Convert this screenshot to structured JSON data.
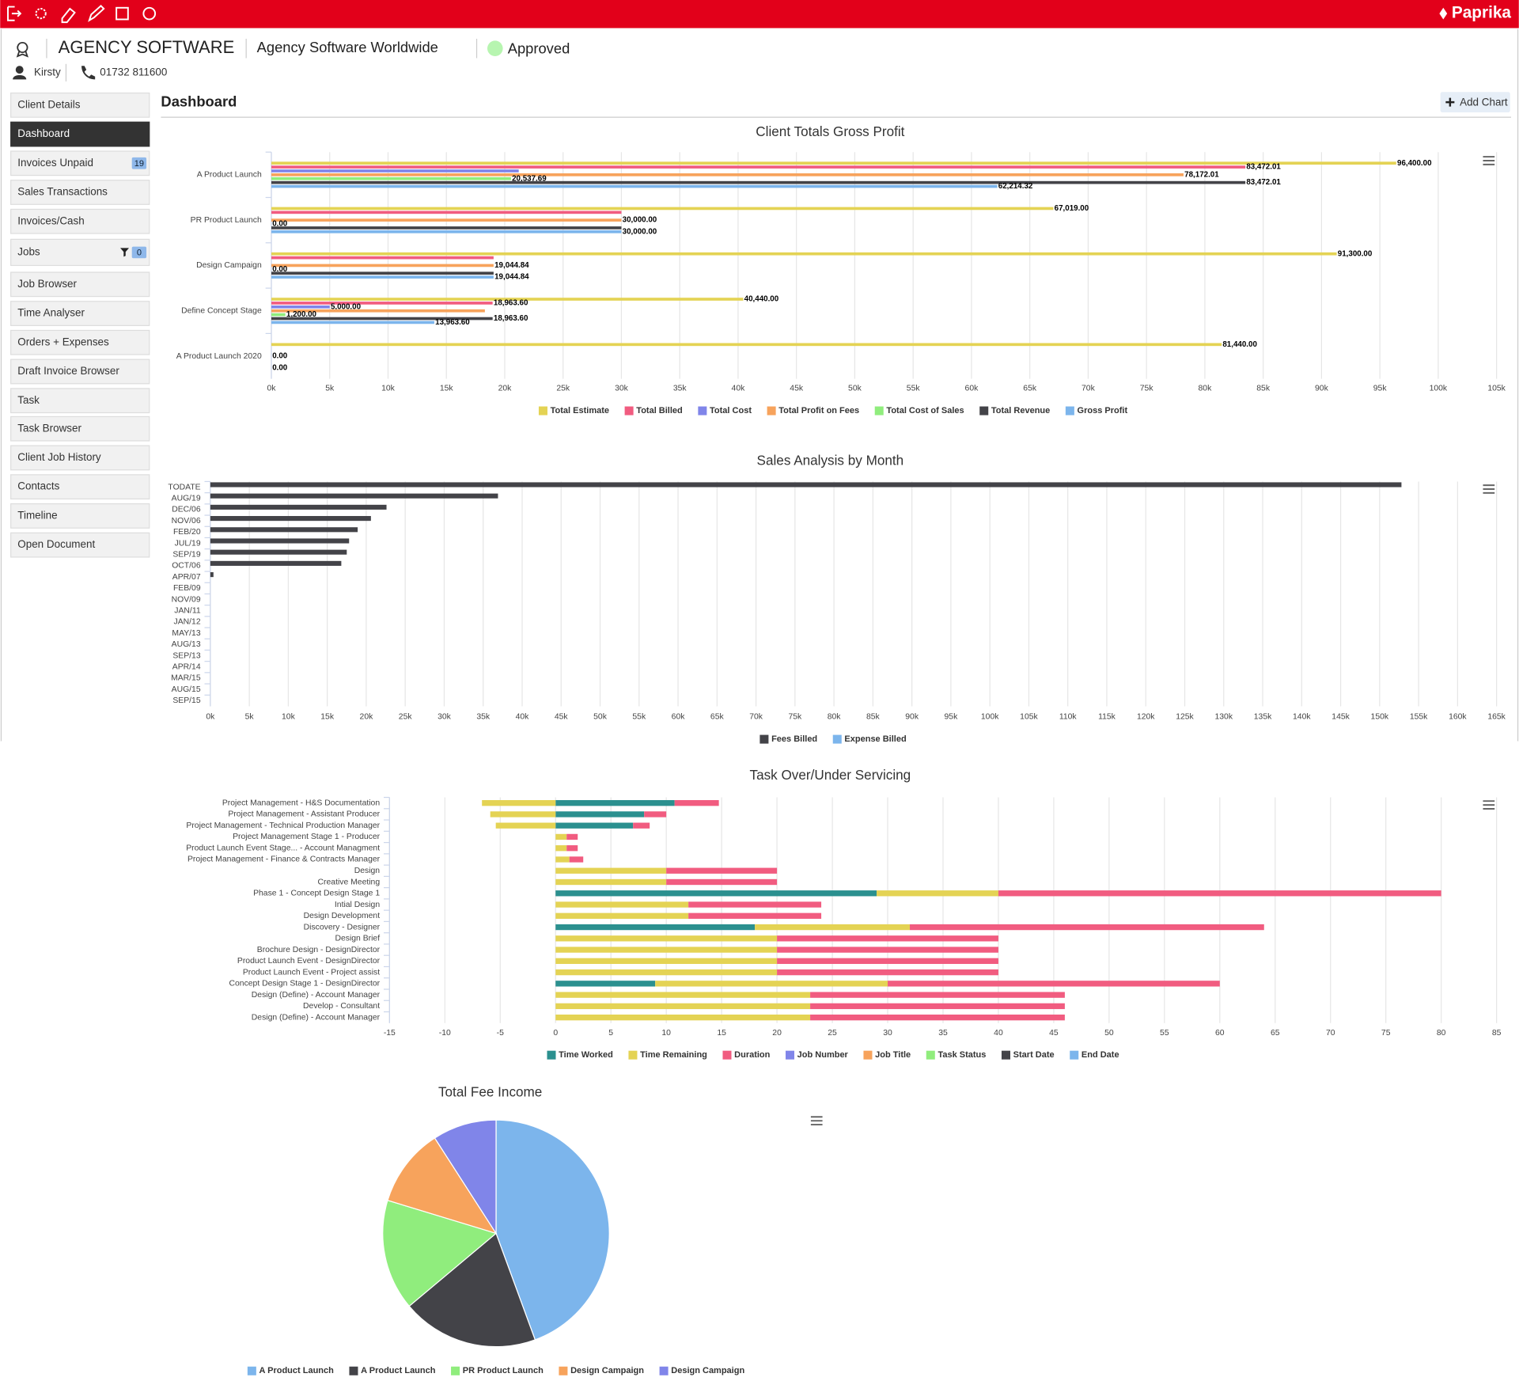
{
  "header": {
    "brand": "Paprika",
    "client": "AGENCY SOFTWARE",
    "company": "Agency Software Worldwide",
    "status": "Approved",
    "contact": "Kirsty",
    "phone": "01732 811600"
  },
  "sidebar": [
    {
      "label": "Client Details"
    },
    {
      "label": "Dashboard",
      "active": true
    },
    {
      "label": "Invoices Unpaid",
      "badge": 19
    },
    {
      "label": "Sales Transactions"
    },
    {
      "label": "Invoices/Cash"
    },
    {
      "label": "Jobs",
      "badge": 0,
      "filter": true
    },
    {
      "label": "Job Browser"
    },
    {
      "label": "Time Analyser"
    },
    {
      "label": "Orders + Expenses"
    },
    {
      "label": "Draft Invoice Browser"
    },
    {
      "label": "Task"
    },
    {
      "label": "Task Browser"
    },
    {
      "label": "Client Job History"
    },
    {
      "label": "Contacts"
    },
    {
      "label": "Timeline"
    },
    {
      "label": "Open Document"
    }
  ],
  "page_title": "Dashboard",
  "add_chart": "Add Chart",
  "chart_data": [
    {
      "type": "bar",
      "title": "Client Totals Gross Profit",
      "categories": [
        "A Product Launch",
        "PR Product Launch",
        "Design Campaign",
        "Define Concept Stage",
        "A Product Launch 2020"
      ],
      "series": [
        {
          "name": "Total Estimate",
          "color": "#e4d354",
          "values": [
            96400,
            67019,
            91300,
            40440,
            81440
          ],
          "value_labels": [
            "96,400.00",
            "67,019.00",
            "91,300.00",
            "40,440.00",
            "81,440.00"
          ]
        },
        {
          "name": "Total Billed",
          "color": "#f15c80",
          "values": [
            83472.01,
            30000,
            19044.84,
            18963.6,
            0
          ],
          "value_labels": [
            "83,472.01",
            null,
            null,
            "18,963.60",
            null
          ]
        },
        {
          "name": "Total Cost",
          "color": "#8085e9",
          "values": [
            21200,
            0,
            0,
            5000,
            0
          ],
          "value_labels": [
            null,
            null,
            null,
            "5,000.00",
            null
          ]
        },
        {
          "name": "Total Profit on Fees",
          "color": "#f7a35c",
          "values": [
            78172.01,
            30000,
            19044.84,
            18300,
            0
          ],
          "value_labels": [
            "78,172.01",
            "30,000.00",
            "19,044.84",
            null,
            "0.00"
          ]
        },
        {
          "name": "Total Cost of Sales",
          "color": "#90ed7d",
          "values": [
            20537.69,
            0,
            0,
            1200,
            0
          ],
          "value_labels": [
            "20,537.69",
            "0.00",
            "0.00",
            "1,200.00",
            null
          ]
        },
        {
          "name": "Total Revenue",
          "color": "#434348",
          "values": [
            83472.01,
            30000,
            19044.84,
            18963.6,
            0
          ],
          "value_labels": [
            "83,472.01",
            null,
            null,
            "18,963.60",
            null
          ]
        },
        {
          "name": "Gross Profit",
          "color": "#7cb5ec",
          "values": [
            62214.32,
            30000,
            19044.84,
            13963.6,
            0
          ],
          "value_labels": [
            "62,214.32",
            "30,000.00",
            "19,044.84",
            "13,963.60",
            "0.00"
          ]
        }
      ],
      "xlim": [
        0,
        105000
      ],
      "xticks": [
        {
          "value": 0,
          "label": "0k"
        },
        {
          "value": 5000,
          "label": "5k"
        },
        {
          "value": 10000,
          "label": "10k"
        },
        {
          "value": 15000,
          "label": "15k"
        },
        {
          "value": 20000,
          "label": "20k"
        },
        {
          "value": 25000,
          "label": "25k"
        },
        {
          "value": 30000,
          "label": "30k"
        },
        {
          "value": 35000,
          "label": "35k"
        },
        {
          "value": 40000,
          "label": "40k"
        },
        {
          "value": 45000,
          "label": "45k"
        },
        {
          "value": 50000,
          "label": "50k"
        },
        {
          "value": 55000,
          "label": "55k"
        },
        {
          "value": 60000,
          "label": "60k"
        },
        {
          "value": 65000,
          "label": "65k"
        },
        {
          "value": 70000,
          "label": "70k"
        },
        {
          "value": 75000,
          "label": "75k"
        },
        {
          "value": 80000,
          "label": "80k"
        },
        {
          "value": 85000,
          "label": "85k"
        },
        {
          "value": 90000,
          "label": "90k"
        },
        {
          "value": 95000,
          "label": "95k"
        },
        {
          "value": 100000,
          "label": "100k"
        },
        {
          "value": 105000,
          "label": "105k"
        }
      ],
      "grid": true
    },
    {
      "type": "bar",
      "title": "Sales Analysis by Month",
      "categories": [
        "TODATE",
        "AUG/19",
        "DEC/06",
        "NOV/06",
        "FEB/20",
        "JUL/19",
        "SEP/19",
        "OCT/06",
        "APR/07",
        "FEB/09",
        "NOV/09",
        "JAN/11",
        "JAN/12",
        "MAY/13",
        "AUG/13",
        "SEP/13",
        "APR/14",
        "MAR/15",
        "AUG/15",
        "SEP/15"
      ],
      "series": [
        {
          "name": "Fees Billed",
          "color": "#434348",
          "values": [
            152800,
            36900,
            22600,
            20600,
            18900,
            17800,
            17500,
            16800,
            400,
            0,
            0,
            0,
            0,
            0,
            0,
            0,
            0,
            0,
            0,
            0
          ]
        },
        {
          "name": "Expense Billed",
          "color": "#7cb5ec",
          "values": [
            0,
            0,
            0,
            0,
            0,
            0,
            0,
            0,
            0,
            0,
            0,
            0,
            0,
            0,
            0,
            0,
            0,
            0,
            0,
            0
          ]
        }
      ],
      "xlim": [
        0,
        165000
      ],
      "xticks": [
        {
          "value": 0,
          "label": "0k"
        },
        {
          "value": 5000,
          "label": "5k"
        },
        {
          "value": 10000,
          "label": "10k"
        },
        {
          "value": 15000,
          "label": "15k"
        },
        {
          "value": 20000,
          "label": "20k"
        },
        {
          "value": 25000,
          "label": "25k"
        },
        {
          "value": 30000,
          "label": "30k"
        },
        {
          "value": 35000,
          "label": "35k"
        },
        {
          "value": 40000,
          "label": "40k"
        },
        {
          "value": 45000,
          "label": "45k"
        },
        {
          "value": 50000,
          "label": "50k"
        },
        {
          "value": 55000,
          "label": "55k"
        },
        {
          "value": 60000,
          "label": "60k"
        },
        {
          "value": 65000,
          "label": "65k"
        },
        {
          "value": 70000,
          "label": "70k"
        },
        {
          "value": 75000,
          "label": "75k"
        },
        {
          "value": 80000,
          "label": "80k"
        },
        {
          "value": 85000,
          "label": "85k"
        },
        {
          "value": 90000,
          "label": "90k"
        },
        {
          "value": 95000,
          "label": "95k"
        },
        {
          "value": 100000,
          "label": "100k"
        },
        {
          "value": 105000,
          "label": "105k"
        },
        {
          "value": 110000,
          "label": "110k"
        },
        {
          "value": 115000,
          "label": "115k"
        },
        {
          "value": 120000,
          "label": "120k"
        },
        {
          "value": 125000,
          "label": "125k"
        },
        {
          "value": 130000,
          "label": "130k"
        },
        {
          "value": 135000,
          "label": "135k"
        },
        {
          "value": 140000,
          "label": "140k"
        },
        {
          "value": 145000,
          "label": "145k"
        },
        {
          "value": 150000,
          "label": "150k"
        },
        {
          "value": 155000,
          "label": "155k"
        },
        {
          "value": 160000,
          "label": "160k"
        },
        {
          "value": 165000,
          "label": "165k"
        }
      ],
      "grid": true
    },
    {
      "type": "bar",
      "stacked": true,
      "title": "Task Over/Under Servicing",
      "categories": [
        "Project Management - H&S Documentation",
        "Project Management - Assistant Producer",
        "Project Management - Technical Production Manager",
        "Project Management Stage 1 - Producer",
        "Product Launch Event Stage... - Account Managment",
        "Project Management - Finance & Contracts Manager",
        "Design",
        "Creative Meeting",
        "Phase 1 - Concept Design Stage 1",
        "Intial Design",
        "Design Development",
        "Discovery - Designer",
        "Design Brief",
        "Brochure Design - DesignDirector",
        "Product Launch Event - DesignDirector",
        "Product Launch Event - Project assist",
        "Concept Design Stage 1 - DesignDirector",
        "Design (Define) - Account Manager",
        "Develop - Consultant",
        "Design (Define) - Account Manager"
      ],
      "series": [
        {
          "name": "Time Worked",
          "color": "#2b908f",
          "values": [
            10.75,
            8,
            7,
            0,
            0,
            0,
            0,
            0,
            29,
            0,
            0,
            18,
            0,
            0,
            0,
            0,
            9,
            0,
            0,
            0
          ]
        },
        {
          "name": "Time Remaining",
          "color": "#e4d354",
          "values": [
            -6.65,
            -5.9,
            -5.4,
            1,
            1,
            1.25,
            10,
            10,
            11,
            12,
            12,
            14,
            20,
            20,
            20,
            20,
            21,
            23,
            23,
            23
          ]
        },
        {
          "name": "Duration",
          "color": "#f15c80",
          "values": [
            4,
            2,
            1.5,
            1,
            1,
            1.25,
            10,
            10,
            40,
            12,
            12,
            32,
            20,
            20,
            20,
            20,
            30,
            23,
            23,
            23
          ]
        },
        {
          "name": "Job Number",
          "color": "#8085e9"
        },
        {
          "name": "Job Title",
          "color": "#f7a35c"
        },
        {
          "name": "Task Status",
          "color": "#90ed7d"
        },
        {
          "name": "Start Date",
          "color": "#434348"
        },
        {
          "name": "End Date",
          "color": "#7cb5ec"
        }
      ],
      "xlim": [
        -15,
        85
      ],
      "xticks": [
        -15,
        -10,
        -5,
        0,
        5,
        10,
        15,
        20,
        25,
        30,
        35,
        40,
        45,
        50,
        55,
        60,
        65,
        70,
        75,
        80,
        85
      ],
      "grid": true
    },
    {
      "type": "pie",
      "title": "Total Fee Income",
      "categories": [
        "A Product Launch",
        "A Product Launch",
        "PR Product Launch",
        "Design Campaign",
        "Design Campaign"
      ],
      "values": [
        44.4,
        19.5,
        15.8,
        11.2,
        9.1
      ],
      "colors": [
        "#7cb5ec",
        "#434348",
        "#90ed7d",
        "#f7a35c",
        "#8085e9"
      ]
    }
  ]
}
